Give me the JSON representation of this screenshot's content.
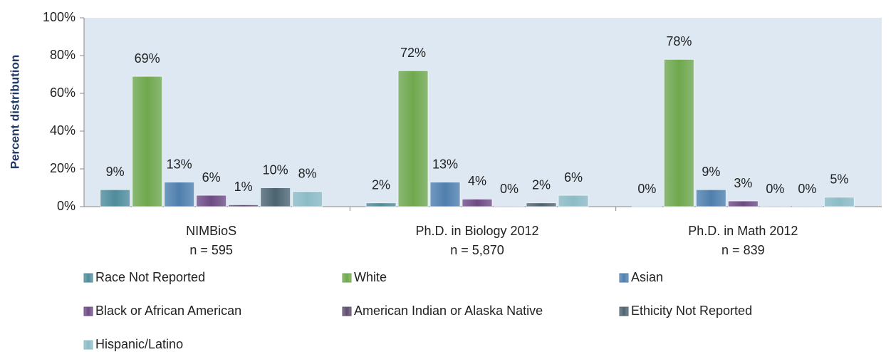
{
  "chart_data": {
    "type": "bar",
    "y_label": "Percent distribution",
    "categories": [
      "NIMBioS",
      "Ph.D. in Biology 2012",
      "Ph.D. in Math 2012"
    ],
    "category_notes": [
      "n = 595",
      "n = 5,870",
      "n = 839"
    ],
    "ylim": [
      0,
      100
    ],
    "yticks": [
      {
        "value": 0,
        "label": "0%"
      },
      {
        "value": 20,
        "label": "20%"
      },
      {
        "value": 40,
        "label": "40%"
      },
      {
        "value": 60,
        "label": "60%"
      },
      {
        "value": 80,
        "label": "80%"
      },
      {
        "value": 100,
        "label": "100%"
      }
    ],
    "legend": "bottom",
    "series": [
      {
        "name": "Race Not Reported",
        "color": "#4f8c9c",
        "values": [
          9,
          2,
          0
        ],
        "value_labels": [
          "9%",
          "2%",
          "0%"
        ]
      },
      {
        "name": "White",
        "color": "#6fa84c",
        "values": [
          69,
          72,
          78
        ],
        "value_labels": [
          "69%",
          "72%",
          "78%"
        ]
      },
      {
        "name": "Asian",
        "color": "#4f7fae",
        "values": [
          13,
          13,
          9
        ],
        "value_labels": [
          "13%",
          "13%",
          "9%"
        ]
      },
      {
        "name": "Black or African American",
        "color": "#6e4a84",
        "values": [
          6,
          4,
          3
        ],
        "value_labels": [
          "6%",
          "4%",
          "3%"
        ]
      },
      {
        "name": "American Indian or Alaska Native",
        "color": "#5e4c6c",
        "values": [
          1,
          0,
          0
        ],
        "value_labels": [
          "1%",
          "0%",
          "0%"
        ]
      },
      {
        "name": "Ethicity Not Reported",
        "color": "#4c6470",
        "values": [
          10,
          2,
          0
        ],
        "value_labels": [
          "10%",
          "2%",
          "0%"
        ]
      },
      {
        "name": "Hispanic/Latino",
        "color": "#8cbcc6",
        "values": [
          8,
          6,
          5
        ],
        "value_labels": [
          "8%",
          "6%",
          "5%"
        ]
      }
    ]
  }
}
